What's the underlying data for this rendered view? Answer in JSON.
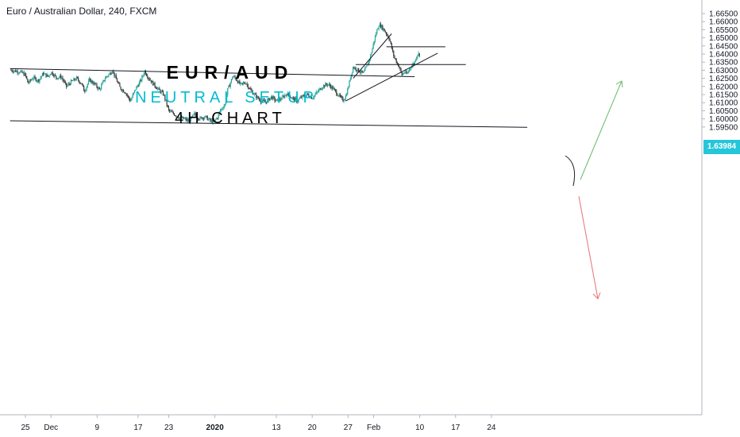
{
  "title": "Euro / Australian Dollar, 240, FXCM",
  "annotations": {
    "line1": "EUR/AUD",
    "line2": "NEUTRAL SETUP",
    "line3": "4H CHART"
  },
  "price_tag": "1.63984",
  "colors": {
    "up_candle": "#26a69a",
    "down_candle": "#3a3a3a",
    "tag_bg": "#26c6da",
    "anno_cyan": "#00bcd4",
    "arrow_up": "#66bb6a",
    "arrow_down": "#e57373"
  },
  "chart_data": {
    "type": "candlestick",
    "y_ticks": [
      "1.66500",
      "1.66000",
      "1.65500",
      "1.65000",
      "1.64500",
      "1.64000",
      "1.63500",
      "1.63000",
      "1.62500",
      "1.62000",
      "1.61500",
      "1.61000",
      "1.60500",
      "1.60000",
      "1.59500"
    ],
    "y_tick_values": [
      1.665,
      1.66,
      1.655,
      1.65,
      1.645,
      1.64,
      1.635,
      1.63,
      1.625,
      1.62,
      1.615,
      1.61,
      1.605,
      1.6,
      1.595
    ],
    "ylim": [
      1.5915,
      1.6685
    ],
    "x_ticks": [
      {
        "label": "25",
        "day": 0
      },
      {
        "label": "Dec",
        "day": 5
      },
      {
        "label": "9",
        "day": 14
      },
      {
        "label": "17",
        "day": 22
      },
      {
        "label": "23",
        "day": 28
      },
      {
        "label": "2020",
        "day": 37
      },
      {
        "label": "13",
        "day": 49
      },
      {
        "label": "20",
        "day": 56
      },
      {
        "label": "27",
        "day": 63
      },
      {
        "label": "Feb",
        "day": 68
      },
      {
        "label": "10",
        "day": 77
      },
      {
        "label": "17",
        "day": 84
      },
      {
        "label": "24",
        "day": 91
      }
    ],
    "price_path": [
      [
        -2.8,
        1.63
      ],
      [
        -1,
        1.629
      ],
      [
        0,
        1.627
      ],
      [
        0.5,
        1.622
      ],
      [
        1.5,
        1.6255
      ],
      [
        2.5,
        1.6235
      ],
      [
        3.5,
        1.628
      ],
      [
        4.5,
        1.626
      ],
      [
        5,
        1.629
      ],
      [
        6,
        1.6255
      ],
      [
        7,
        1.626
      ],
      [
        8,
        1.62
      ],
      [
        9,
        1.623
      ],
      [
        10,
        1.625
      ],
      [
        11,
        1.6215
      ],
      [
        11.5,
        1.617
      ],
      [
        12.5,
        1.624
      ],
      [
        13.5,
        1.6215
      ],
      [
        14.5,
        1.618
      ],
      [
        15.5,
        1.625
      ],
      [
        16.5,
        1.628
      ],
      [
        17,
        1.63
      ],
      [
        17.5,
        1.626
      ],
      [
        18.5,
        1.619
      ],
      [
        19.5,
        1.6165
      ],
      [
        20.5,
        1.611
      ],
      [
        21.5,
        1.6185
      ],
      [
        22.5,
        1.6235
      ],
      [
        23.3,
        1.6295
      ],
      [
        24,
        1.6255
      ],
      [
        25,
        1.6215
      ],
      [
        26,
        1.618
      ],
      [
        27,
        1.615
      ],
      [
        27.5,
        1.61
      ],
      [
        28,
        1.605
      ],
      [
        29,
        1.603
      ],
      [
        30,
        1.601
      ],
      [
        31,
        1.6
      ],
      [
        32,
        1.5985
      ],
      [
        33,
        1.603
      ],
      [
        34,
        1.6
      ],
      [
        35,
        1.6015
      ],
      [
        36,
        1.599
      ],
      [
        36.8,
        1.598
      ],
      [
        37.5,
        1.601
      ],
      [
        38,
        1.605
      ],
      [
        39,
        1.609
      ],
      [
        39.5,
        1.618
      ],
      [
        40,
        1.622
      ],
      [
        40.5,
        1.6265
      ],
      [
        41,
        1.625
      ],
      [
        42,
        1.621
      ],
      [
        43,
        1.6225
      ],
      [
        44,
        1.6175
      ],
      [
        45,
        1.614
      ],
      [
        46,
        1.611
      ],
      [
        47,
        1.6105
      ],
      [
        48,
        1.6135
      ],
      [
        49,
        1.611
      ],
      [
        50,
        1.6125
      ],
      [
        51,
        1.6155
      ],
      [
        52,
        1.613
      ],
      [
        53,
        1.611
      ],
      [
        54,
        1.6135
      ],
      [
        55,
        1.615
      ],
      [
        56,
        1.613
      ],
      [
        57,
        1.6165
      ],
      [
        58,
        1.62
      ],
      [
        59,
        1.6215
      ],
      [
        60,
        1.619
      ],
      [
        61,
        1.615
      ],
      [
        62,
        1.6115
      ],
      [
        62.5,
        1.6135
      ],
      [
        63,
        1.619
      ],
      [
        63.5,
        1.626
      ],
      [
        64,
        1.632
      ],
      [
        65,
        1.63
      ],
      [
        66,
        1.628
      ],
      [
        67,
        1.635
      ],
      [
        67.5,
        1.64
      ],
      [
        68,
        1.647
      ],
      [
        68.5,
        1.653
      ],
      [
        69,
        1.658
      ],
      [
        69.5,
        1.657
      ],
      [
        70,
        1.655
      ],
      [
        71,
        1.65
      ],
      [
        71.5,
        1.644
      ],
      [
        72,
        1.638
      ],
      [
        73,
        1.632
      ],
      [
        73.5,
        1.627
      ],
      [
        74,
        1.629
      ],
      [
        74.5,
        1.6275
      ],
      [
        75,
        1.631
      ],
      [
        76,
        1.635
      ],
      [
        76.5,
        1.64
      ],
      [
        77,
        1.6398
      ]
    ],
    "trendlines": [
      {
        "kind": "support",
        "from": [
          -3,
          1.631
        ],
        "to": [
          76,
          1.626
        ]
      },
      {
        "kind": "support",
        "from": [
          -3,
          1.5988
        ],
        "to": [
          98,
          1.5948
        ]
      },
      {
        "kind": "trend",
        "from": [
          62.5,
          1.611
        ],
        "to": [
          80.5,
          1.6405
        ]
      },
      {
        "kind": "trend",
        "from": [
          64,
          1.625
        ],
        "to": [
          71.5,
          1.6525
        ]
      },
      {
        "kind": "level",
        "from": [
          64.5,
          1.6335
        ],
        "to": [
          86,
          1.6335
        ]
      },
      {
        "kind": "level",
        "from": [
          70.5,
          1.6445
        ],
        "to": [
          82,
          1.6445
        ]
      }
    ]
  }
}
